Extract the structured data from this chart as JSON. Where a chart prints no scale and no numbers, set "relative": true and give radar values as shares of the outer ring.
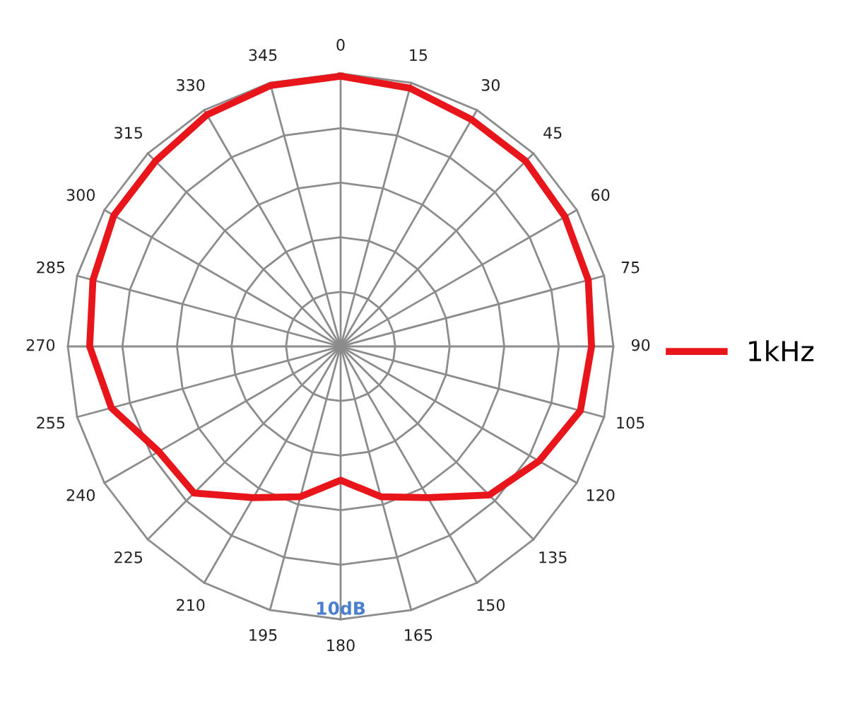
{
  "chart_data": {
    "type": "radar",
    "relative": true,
    "grid": true,
    "legend": "right",
    "categories": [
      "0",
      "15",
      "30",
      "45",
      "60",
      "75",
      "90",
      "105",
      "120",
      "135",
      "150",
      "165",
      "180",
      "195",
      "210",
      "225",
      "240",
      "255",
      "270",
      "285",
      "300",
      "315",
      "330",
      "345"
    ],
    "series": [
      {
        "name": "1kHz",
        "color": "#e8161b",
        "values": [
          0.99,
          0.98,
          0.96,
          0.96,
          0.95,
          0.94,
          0.92,
          0.91,
          0.84,
          0.77,
          0.64,
          0.57,
          0.49,
          0.57,
          0.64,
          0.76,
          0.77,
          0.87,
          0.92,
          0.94,
          0.96,
          0.96,
          0.98,
          0.99
        ]
      }
    ],
    "annotations": [
      "10dB"
    ]
  }
}
